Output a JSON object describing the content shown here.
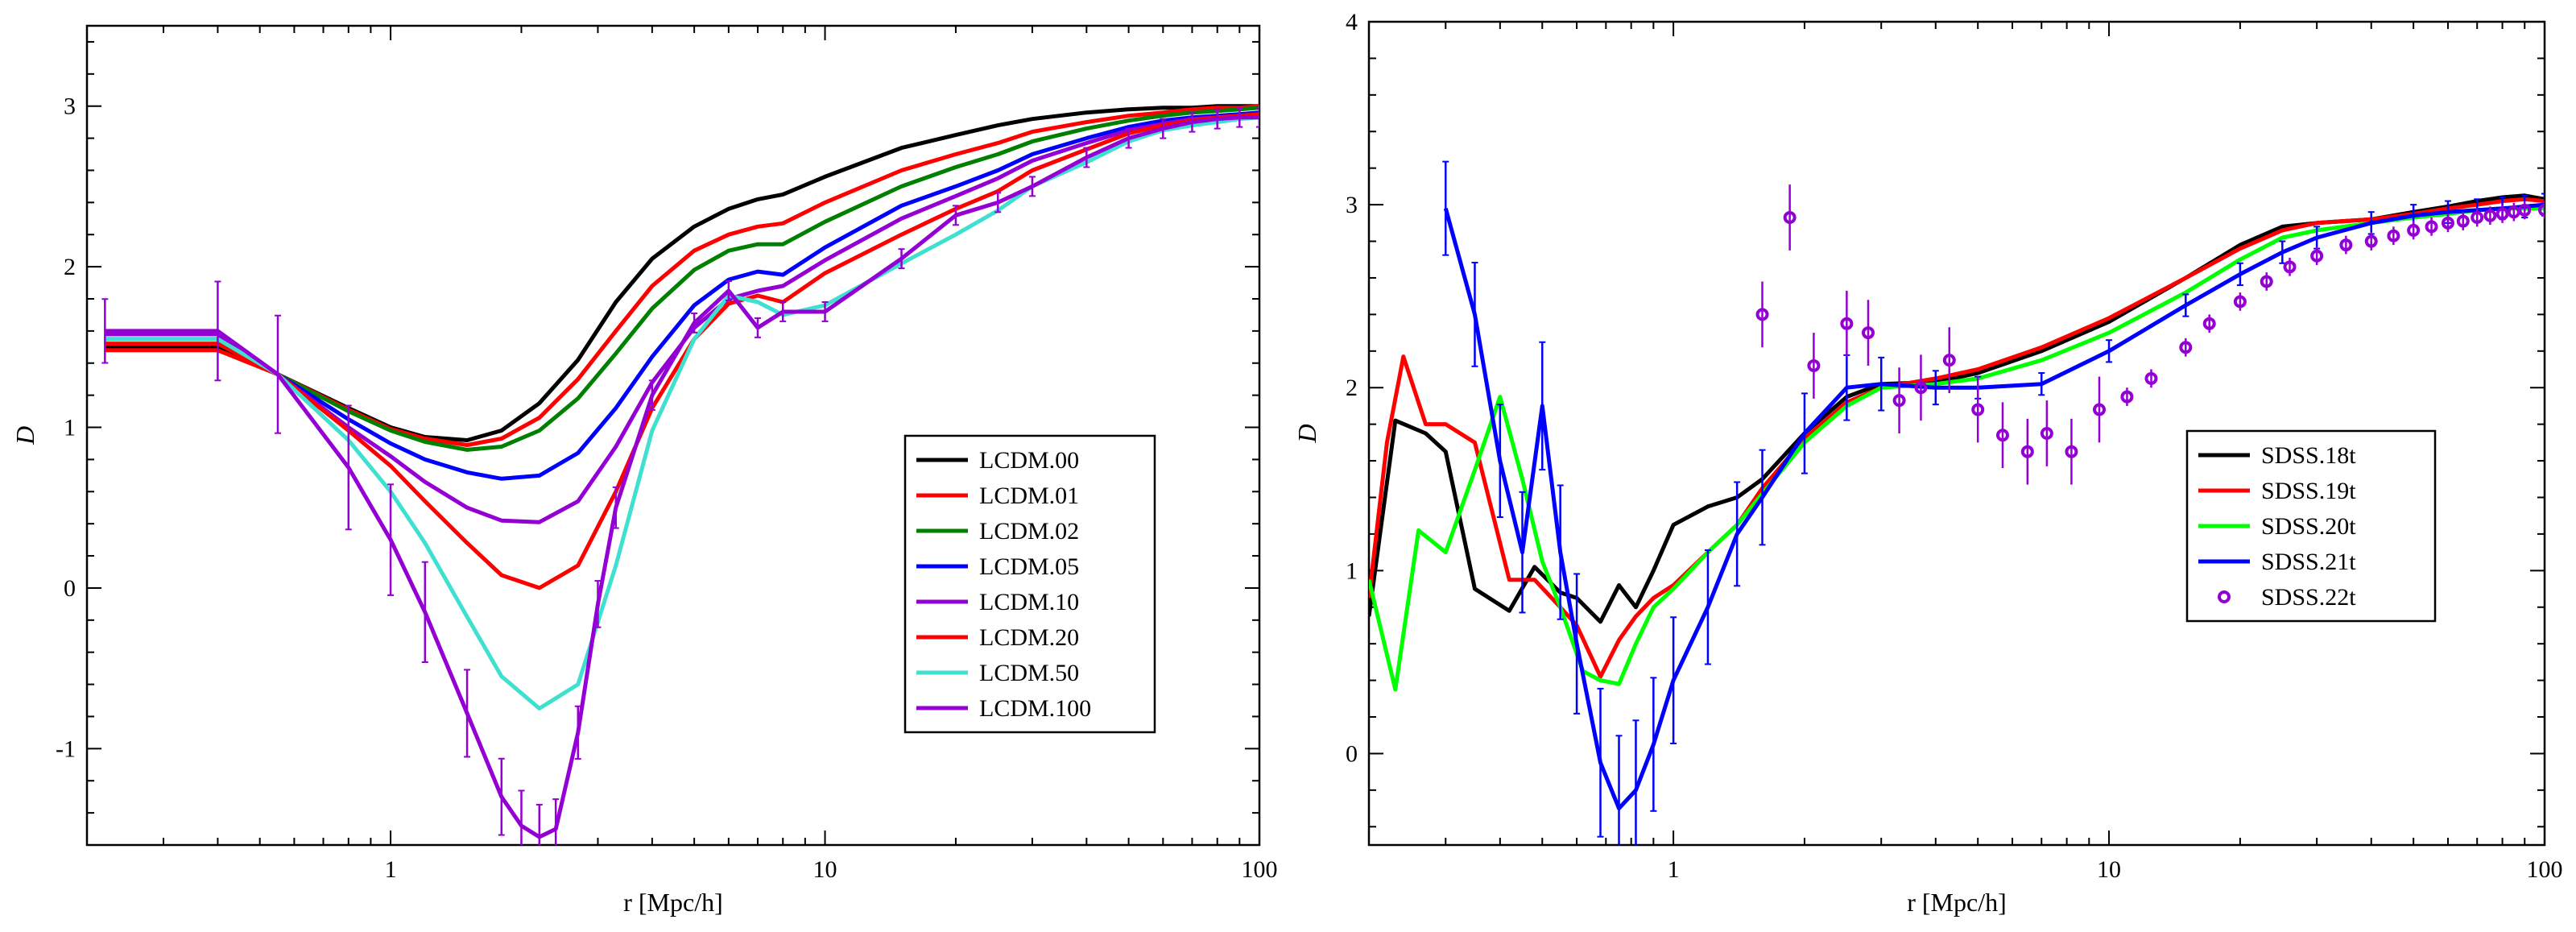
{
  "chart_data": [
    {
      "type": "line",
      "xscale": "log",
      "xlim": [
        0.2,
        100
      ],
      "ylim": [
        -1.6,
        3.5
      ],
      "xlabel": "r [Mpc/h]",
      "ylabel": "D",
      "title": "",
      "x_ticks": [
        1,
        10,
        100
      ],
      "x_tick_labels": [
        "1",
        "10",
        "100"
      ],
      "y_ticks": [
        -1,
        0,
        1,
        2,
        3
      ],
      "y_tick_labels": [
        "-1",
        "0",
        "1",
        "2",
        "3"
      ],
      "legend_position": "right-middle",
      "series": [
        {
          "name": "LCDM.00",
          "color": "#000000",
          "style": "line",
          "x": [
            0.22,
            0.4,
            0.55,
            0.8,
            1.0,
            1.2,
            1.5,
            1.8,
            2.2,
            2.7,
            3.3,
            4.0,
            5.0,
            6.0,
            7.0,
            8.0,
            10,
            15,
            20,
            25,
            30,
            40,
            50,
            60,
            70,
            80,
            90,
            100
          ],
          "y": [
            1.5,
            1.5,
            1.33,
            1.12,
            1.0,
            0.94,
            0.92,
            0.98,
            1.15,
            1.42,
            1.78,
            2.05,
            2.25,
            2.36,
            2.42,
            2.45,
            2.56,
            2.74,
            2.82,
            2.88,
            2.92,
            2.96,
            2.98,
            2.99,
            2.99,
            3.0,
            3.0,
            3.0
          ]
        },
        {
          "name": "LCDM.01",
          "color": "#ff0000",
          "style": "line",
          "x": [
            0.22,
            0.4,
            0.55,
            0.8,
            1.0,
            1.2,
            1.5,
            1.8,
            2.2,
            2.7,
            3.3,
            4.0,
            5.0,
            6.0,
            7.0,
            8.0,
            10,
            15,
            20,
            25,
            30,
            40,
            50,
            60,
            70,
            80,
            90,
            100
          ],
          "y": [
            1.48,
            1.48,
            1.33,
            1.11,
            0.99,
            0.93,
            0.89,
            0.93,
            1.06,
            1.3,
            1.6,
            1.88,
            2.1,
            2.2,
            2.25,
            2.27,
            2.4,
            2.6,
            2.7,
            2.77,
            2.84,
            2.9,
            2.94,
            2.96,
            2.98,
            2.99,
            2.99,
            3.0
          ]
        },
        {
          "name": "LCDM.02",
          "color": "#008000",
          "style": "line",
          "x": [
            0.22,
            0.4,
            0.55,
            0.8,
            1.0,
            1.2,
            1.5,
            1.8,
            2.2,
            2.7,
            3.3,
            4.0,
            5.0,
            6.0,
            7.0,
            8.0,
            10,
            15,
            20,
            25,
            30,
            40,
            50,
            60,
            70,
            80,
            90,
            100
          ],
          "y": [
            1.52,
            1.52,
            1.33,
            1.1,
            0.98,
            0.91,
            0.86,
            0.88,
            0.98,
            1.18,
            1.46,
            1.74,
            1.98,
            2.1,
            2.14,
            2.14,
            2.28,
            2.5,
            2.62,
            2.7,
            2.78,
            2.86,
            2.91,
            2.94,
            2.96,
            2.97,
            2.98,
            2.99
          ]
        },
        {
          "name": "LCDM.05",
          "color": "#0000ff",
          "style": "line",
          "x": [
            0.22,
            0.4,
            0.55,
            0.8,
            1.0,
            1.2,
            1.5,
            1.8,
            2.2,
            2.7,
            3.3,
            4.0,
            5.0,
            6.0,
            7.0,
            8.0,
            10,
            15,
            20,
            25,
            30,
            40,
            50,
            60,
            70,
            80,
            90,
            100
          ],
          "y": [
            1.55,
            1.55,
            1.33,
            1.05,
            0.9,
            0.8,
            0.72,
            0.68,
            0.7,
            0.84,
            1.12,
            1.44,
            1.76,
            1.92,
            1.97,
            1.95,
            2.12,
            2.38,
            2.5,
            2.6,
            2.7,
            2.8,
            2.87,
            2.91,
            2.93,
            2.94,
            2.95,
            2.96
          ]
        },
        {
          "name": "LCDM.10",
          "color": "#9400d3",
          "style": "line",
          "x": [
            0.22,
            0.4,
            0.55,
            0.8,
            1.0,
            1.2,
            1.5,
            1.8,
            2.2,
            2.7,
            3.3,
            4.0,
            5.0,
            6.0,
            7.0,
            8.0,
            10,
            15,
            20,
            25,
            30,
            40,
            50,
            60,
            70,
            80,
            90,
            100
          ],
          "y": [
            1.58,
            1.58,
            1.33,
            1.0,
            0.82,
            0.66,
            0.5,
            0.42,
            0.41,
            0.54,
            0.88,
            1.28,
            1.62,
            1.8,
            1.85,
            1.88,
            2.04,
            2.3,
            2.44,
            2.55,
            2.66,
            2.77,
            2.85,
            2.89,
            2.92,
            2.93,
            2.94,
            2.95
          ]
        },
        {
          "name": "LCDM.20",
          "color": "#ff0000",
          "style": "line",
          "x": [
            0.22,
            0.4,
            0.55,
            0.8,
            1.0,
            1.2,
            1.5,
            1.8,
            2.2,
            2.7,
            3.3,
            4.0,
            5.0,
            6.0,
            7.0,
            8.0,
            10,
            15,
            20,
            25,
            30,
            40,
            50,
            60,
            70,
            80,
            90,
            100
          ],
          "y": [
            1.52,
            1.52,
            1.33,
            0.98,
            0.76,
            0.54,
            0.28,
            0.08,
            0.0,
            0.14,
            0.6,
            1.12,
            1.55,
            1.77,
            1.82,
            1.78,
            1.96,
            2.2,
            2.36,
            2.47,
            2.6,
            2.73,
            2.83,
            2.88,
            2.91,
            2.93,
            2.94,
            2.95
          ]
        },
        {
          "name": "LCDM.50",
          "color": "#40e0d0",
          "style": "line",
          "x": [
            0.22,
            0.4,
            0.55,
            0.8,
            1.0,
            1.2,
            1.5,
            1.8,
            2.2,
            2.7,
            3.3,
            4.0,
            5.0,
            6.0,
            7.0,
            8.0,
            10,
            15,
            20,
            25,
            30,
            40,
            50,
            60,
            70,
            80,
            90,
            100
          ],
          "y": [
            1.55,
            1.55,
            1.33,
            0.92,
            0.6,
            0.28,
            -0.18,
            -0.55,
            -0.75,
            -0.6,
            0.14,
            0.98,
            1.55,
            1.82,
            1.78,
            1.7,
            1.76,
            2.02,
            2.2,
            2.35,
            2.5,
            2.65,
            2.78,
            2.85,
            2.88,
            2.9,
            2.92,
            2.93
          ]
        },
        {
          "name": "LCDM.100",
          "color": "#9400d3",
          "style": "errorbar-line",
          "x": [
            0.22,
            0.4,
            0.55,
            0.8,
            1.0,
            1.2,
            1.5,
            1.8,
            2.0,
            2.2,
            2.4,
            2.7,
            3.0,
            3.3,
            4.0,
            5.0,
            6.0,
            7.0,
            8.0,
            10,
            15,
            20,
            25,
            30,
            40,
            50,
            60,
            70,
            80,
            90,
            100
          ],
          "y": [
            1.6,
            1.6,
            1.33,
            0.75,
            0.3,
            -0.15,
            -0.78,
            -1.3,
            -1.48,
            -1.55,
            -1.5,
            -0.9,
            -0.1,
            0.5,
            1.2,
            1.65,
            1.85,
            1.62,
            1.72,
            1.72,
            2.05,
            2.32,
            2.4,
            2.5,
            2.68,
            2.8,
            2.86,
            2.9,
            2.92,
            2.93,
            2.93
          ]
        }
      ]
    },
    {
      "type": "line",
      "xscale": "log",
      "xlim": [
        0.2,
        100
      ],
      "ylim": [
        -0.5,
        4
      ],
      "xlabel": "r [Mpc/h]",
      "ylabel": "D",
      "title": "",
      "x_ticks": [
        1,
        10,
        100
      ],
      "x_tick_labels": [
        "1",
        "10",
        "100"
      ],
      "y_ticks": [
        0,
        1,
        2,
        3,
        4
      ],
      "y_tick_labels": [
        "0",
        "1",
        "2",
        "3",
        "4"
      ],
      "legend_position": "right-middle",
      "series": [
        {
          "name": "SDSS.18t",
          "color": "#000000",
          "style": "line",
          "x": [
            0.2,
            0.23,
            0.27,
            0.3,
            0.35,
            0.42,
            0.48,
            0.55,
            0.6,
            0.68,
            0.75,
            0.82,
            0.9,
            1.0,
            1.2,
            1.4,
            1.6,
            2.0,
            2.5,
            3.0,
            4.0,
            5.0,
            7.0,
            10,
            15,
            20,
            25,
            30,
            40,
            50,
            60,
            70,
            80,
            90,
            100
          ],
          "y": [
            0.75,
            1.82,
            1.75,
            1.65,
            0.9,
            0.78,
            1.02,
            0.88,
            0.85,
            0.72,
            0.92,
            0.8,
            1.0,
            1.25,
            1.35,
            1.4,
            1.5,
            1.75,
            1.95,
            2.02,
            2.03,
            2.08,
            2.2,
            2.36,
            2.6,
            2.78,
            2.88,
            2.9,
            2.92,
            2.96,
            2.99,
            3.02,
            3.04,
            3.05,
            3.03
          ]
        },
        {
          "name": "SDSS.19t",
          "color": "#ff0000",
          "style": "line",
          "x": [
            0.2,
            0.22,
            0.24,
            0.27,
            0.3,
            0.35,
            0.42,
            0.48,
            0.55,
            0.6,
            0.68,
            0.75,
            0.82,
            0.9,
            1.0,
            1.2,
            1.4,
            1.6,
            2.0,
            2.5,
            3.0,
            4.0,
            5.0,
            7.0,
            10,
            15,
            20,
            25,
            30,
            40,
            50,
            60,
            70,
            80,
            90,
            100
          ],
          "y": [
            0.85,
            1.7,
            2.17,
            1.8,
            1.8,
            1.7,
            0.95,
            0.95,
            0.8,
            0.7,
            0.42,
            0.62,
            0.75,
            0.85,
            0.92,
            1.1,
            1.25,
            1.45,
            1.72,
            1.92,
            2.0,
            2.05,
            2.1,
            2.22,
            2.38,
            2.6,
            2.76,
            2.86,
            2.9,
            2.92,
            2.95,
            2.98,
            3.0,
            3.02,
            3.03,
            3.02
          ]
        },
        {
          "name": "SDSS.20t",
          "color": "#00ff00",
          "style": "line",
          "x": [
            0.2,
            0.23,
            0.26,
            0.3,
            0.35,
            0.4,
            0.45,
            0.5,
            0.55,
            0.62,
            0.68,
            0.75,
            0.82,
            0.9,
            1.0,
            1.2,
            1.4,
            1.6,
            2.0,
            2.5,
            3.0,
            4.0,
            5.0,
            7.0,
            10,
            15,
            20,
            25,
            30,
            40,
            50,
            60,
            70,
            80,
            90,
            100
          ],
          "y": [
            0.95,
            0.35,
            1.22,
            1.1,
            1.55,
            1.95,
            1.5,
            1.05,
            0.8,
            0.45,
            0.4,
            0.38,
            0.6,
            0.8,
            0.9,
            1.1,
            1.25,
            1.42,
            1.7,
            1.9,
            2.0,
            2.02,
            2.05,
            2.15,
            2.3,
            2.52,
            2.7,
            2.82,
            2.86,
            2.9,
            2.93,
            2.95,
            2.97,
            2.98,
            2.98,
            2.98
          ]
        },
        {
          "name": "SDSS.21t",
          "color": "#0000ff",
          "style": "errorbar-line",
          "x": [
            0.3,
            0.35,
            0.4,
            0.45,
            0.5,
            0.55,
            0.6,
            0.68,
            0.75,
            0.82,
            0.9,
            1.0,
            1.2,
            1.4,
            1.6,
            2.0,
            2.5,
            3.0,
            4.0,
            5.0,
            7.0,
            10,
            15,
            20,
            25,
            30,
            40,
            50,
            60,
            70,
            80,
            90,
            100
          ],
          "y": [
            2.98,
            2.4,
            1.6,
            1.1,
            1.9,
            1.1,
            0.6,
            -0.05,
            -0.3,
            -0.2,
            0.05,
            0.4,
            0.8,
            1.2,
            1.4,
            1.75,
            2.0,
            2.02,
            2.0,
            2.0,
            2.02,
            2.2,
            2.45,
            2.62,
            2.74,
            2.82,
            2.9,
            2.94,
            2.96,
            2.97,
            2.98,
            2.99,
            3.0
          ]
        },
        {
          "name": "SDSS.22t",
          "color": "#9400d3",
          "style": "markers",
          "x": [
            1.6,
            1.85,
            2.1,
            2.5,
            2.8,
            3.3,
            3.7,
            4.3,
            5.0,
            5.7,
            6.5,
            7.2,
            8.2,
            9.5,
            11,
            12.5,
            15,
            17,
            20,
            23,
            26,
            30,
            35,
            40,
            45,
            50,
            55,
            60,
            65,
            70,
            75,
            80,
            85,
            90,
            100
          ],
          "y": [
            2.4,
            2.93,
            2.12,
            2.35,
            2.3,
            1.93,
            2.0,
            2.15,
            1.88,
            1.74,
            1.65,
            1.75,
            1.65,
            1.88,
            1.95,
            2.05,
            2.22,
            2.35,
            2.47,
            2.58,
            2.66,
            2.72,
            2.78,
            2.8,
            2.83,
            2.86,
            2.88,
            2.9,
            2.91,
            2.93,
            2.94,
            2.95,
            2.96,
            2.97,
            2.97
          ]
        }
      ]
    }
  ]
}
